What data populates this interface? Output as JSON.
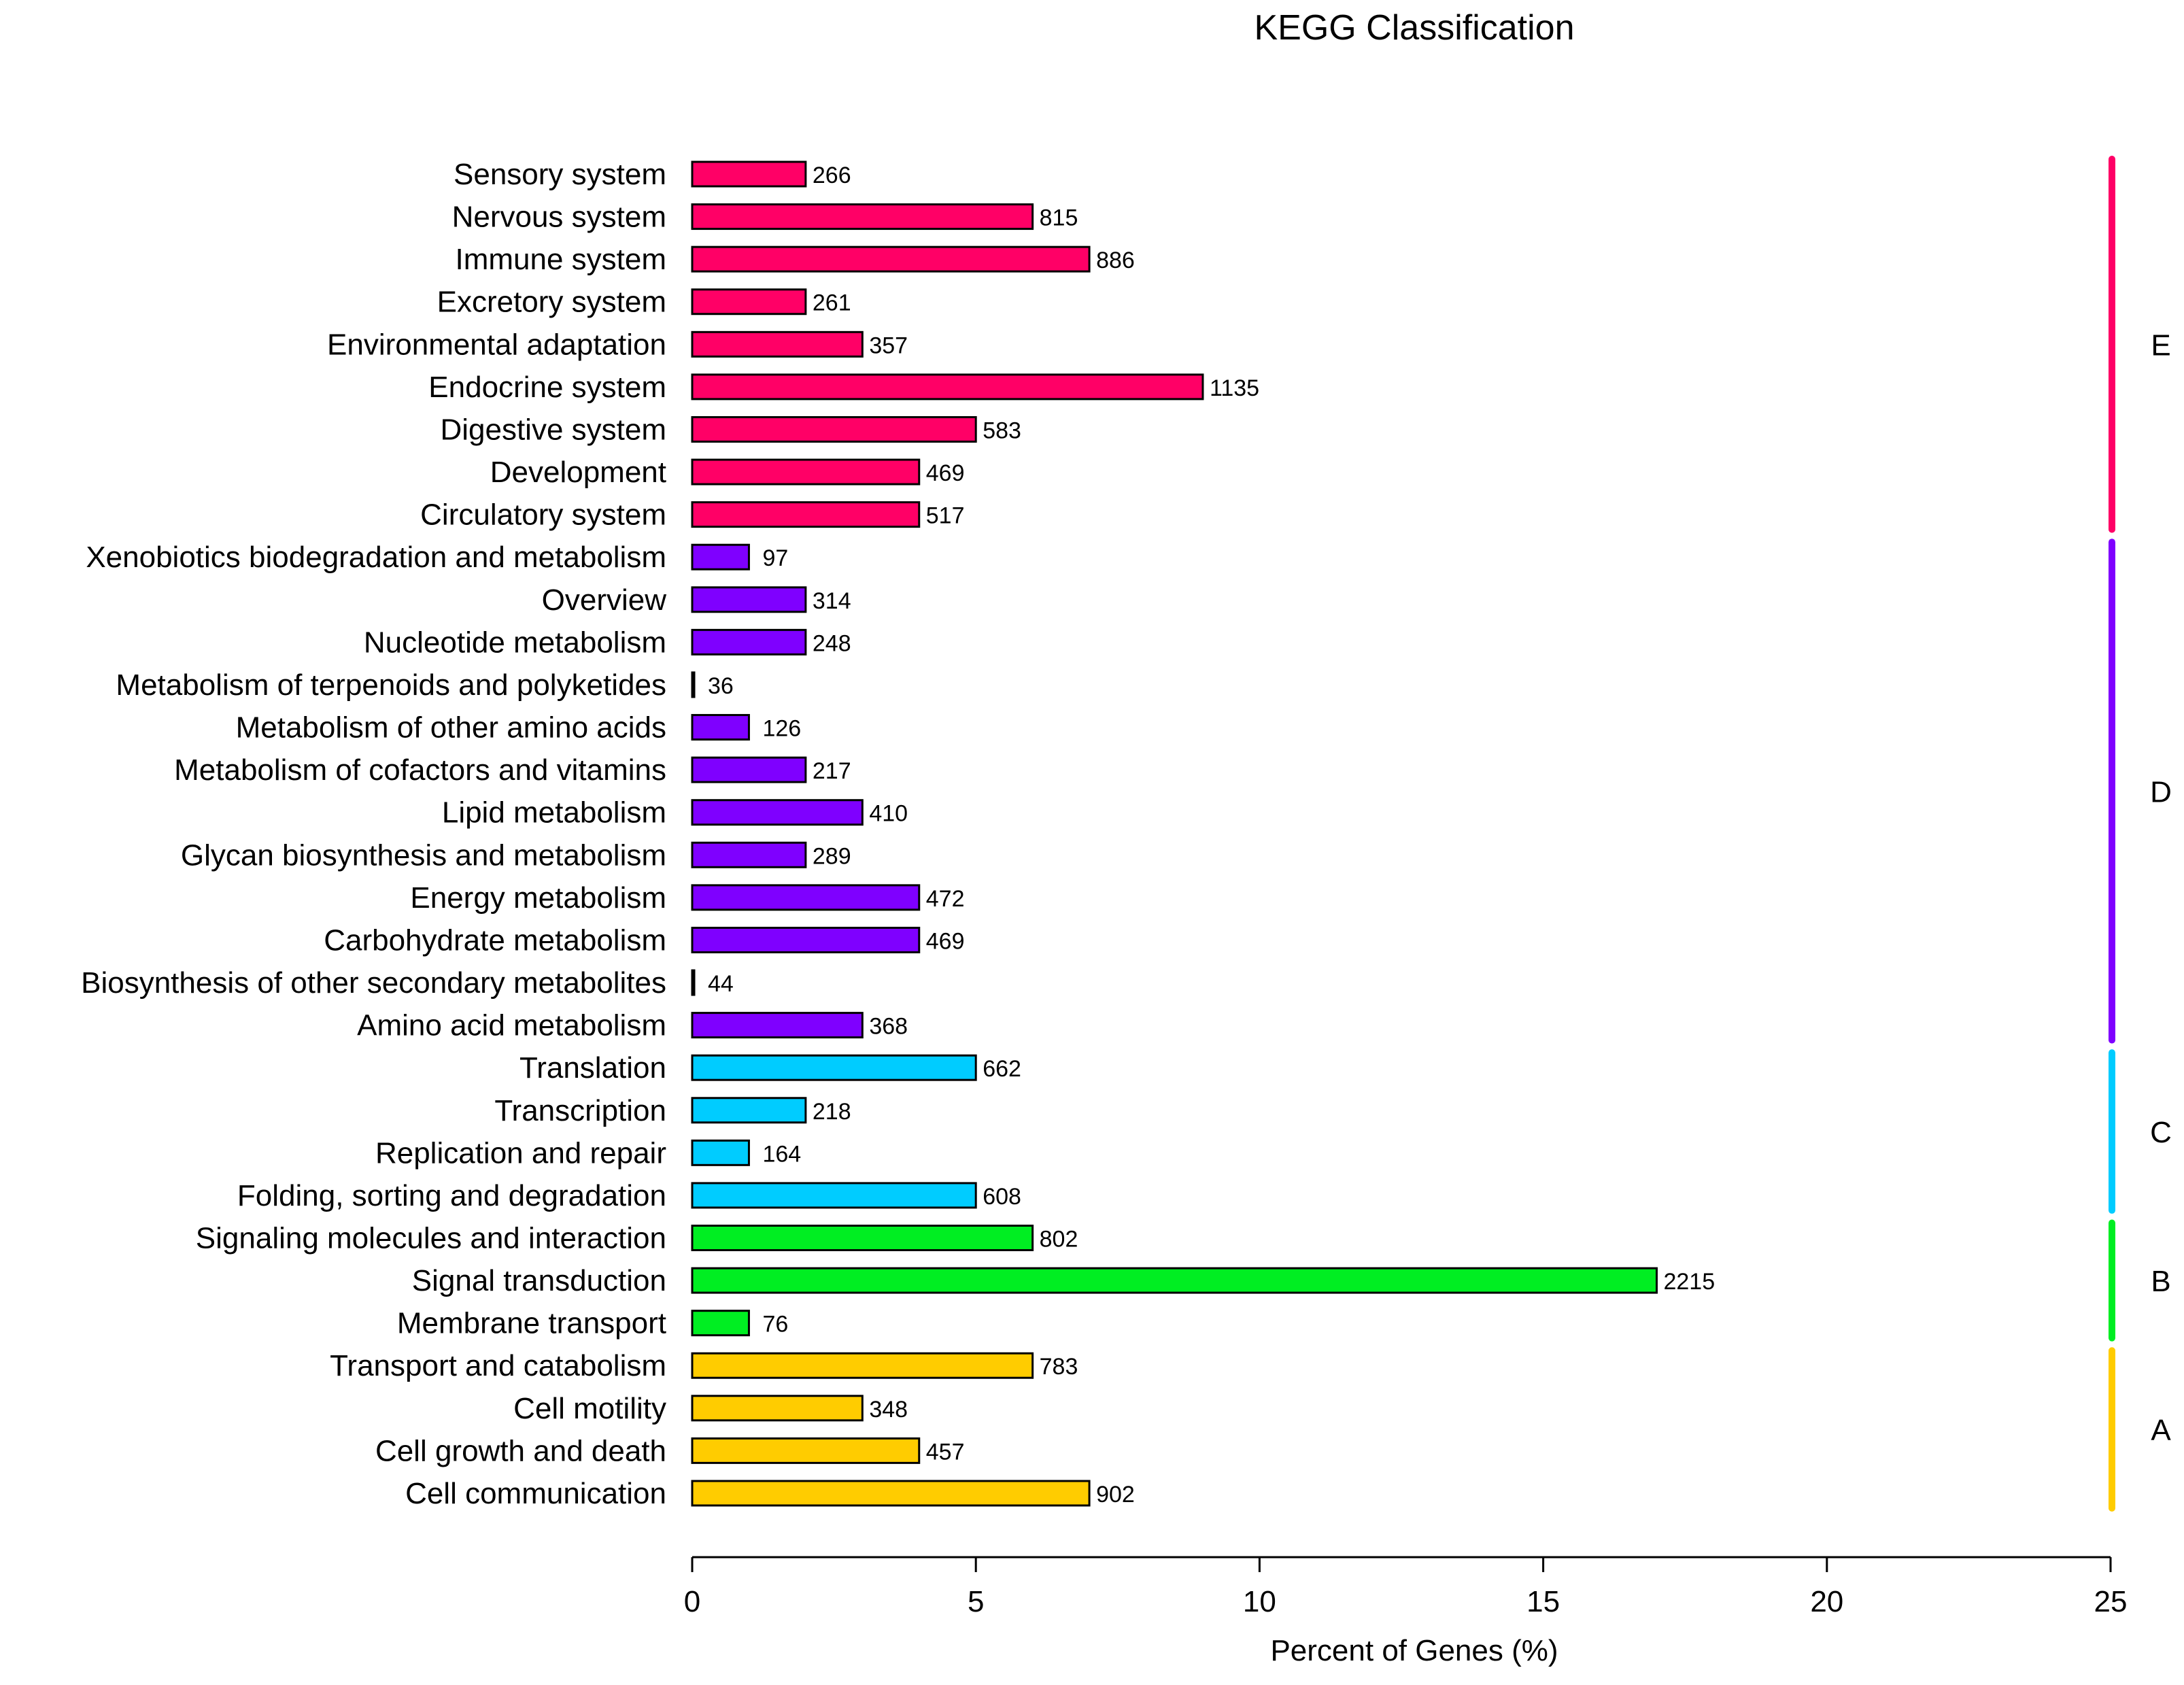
{
  "chart_data": {
    "type": "bar",
    "orientation": "horizontal",
    "title": "KEGG Classification",
    "xlabel": "Percent of Genes (%)",
    "ylabel": "",
    "xlim": [
      0,
      25
    ],
    "xticks": [
      0,
      5,
      10,
      15,
      20,
      25
    ],
    "grid": false,
    "bars": [
      {
        "label": "Sensory system",
        "percent": 2,
        "count": "266",
        "group": "E"
      },
      {
        "label": "Nervous system",
        "percent": 6,
        "count": "815",
        "group": "E"
      },
      {
        "label": "Immune system",
        "percent": 7,
        "count": "886",
        "group": "E"
      },
      {
        "label": "Excretory system",
        "percent": 2,
        "count": "261",
        "group": "E"
      },
      {
        "label": "Environmental adaptation",
        "percent": 3,
        "count": "357",
        "group": "E"
      },
      {
        "label": "Endocrine system",
        "percent": 9,
        "count": "1135",
        "group": "E"
      },
      {
        "label": "Digestive system",
        "percent": 5,
        "count": "583",
        "group": "E"
      },
      {
        "label": "Development",
        "percent": 4,
        "count": "469",
        "group": "E"
      },
      {
        "label": "Circulatory system",
        "percent": 4,
        "count": "517",
        "group": "E"
      },
      {
        "label": "Xenobiotics biodegradation and metabolism",
        "percent": 1,
        "count": "97",
        "group": "D"
      },
      {
        "label": "Overview",
        "percent": 2,
        "count": "314",
        "group": "D"
      },
      {
        "label": "Nucleotide metabolism",
        "percent": 2,
        "count": "248",
        "group": "D"
      },
      {
        "label": "Metabolism of terpenoids and polyketides",
        "percent": 0,
        "count": "36",
        "group": "D"
      },
      {
        "label": "Metabolism of other amino acids",
        "percent": 1,
        "count": "126",
        "group": "D"
      },
      {
        "label": "Metabolism of cofactors and vitamins",
        "percent": 2,
        "count": "217",
        "group": "D"
      },
      {
        "label": "Lipid metabolism",
        "percent": 3,
        "count": "410",
        "group": "D"
      },
      {
        "label": "Glycan biosynthesis and metabolism",
        "percent": 2,
        "count": "289",
        "group": "D"
      },
      {
        "label": "Energy metabolism",
        "percent": 4,
        "count": "472",
        "group": "D"
      },
      {
        "label": "Carbohydrate metabolism",
        "percent": 4,
        "count": "469",
        "group": "D"
      },
      {
        "label": "Biosynthesis of other secondary metabolites",
        "percent": 0,
        "count": "44",
        "group": "D"
      },
      {
        "label": "Amino acid metabolism",
        "percent": 3,
        "count": "368",
        "group": "D"
      },
      {
        "label": "Translation",
        "percent": 5,
        "count": "662",
        "group": "C"
      },
      {
        "label": "Transcription",
        "percent": 2,
        "count": "218",
        "group": "C"
      },
      {
        "label": "Replication and repair",
        "percent": 1,
        "count": "164",
        "group": "C"
      },
      {
        "label": "Folding, sorting and degradation",
        "percent": 5,
        "count": "608",
        "group": "C"
      },
      {
        "label": "Signaling molecules and interaction",
        "percent": 6,
        "count": "802",
        "group": "B"
      },
      {
        "label": "Signal transduction",
        "percent": 17,
        "count": "2215",
        "group": "B"
      },
      {
        "label": "Membrane transport",
        "percent": 1,
        "count": "76",
        "group": "B"
      },
      {
        "label": "Transport and catabolism",
        "percent": 6,
        "count": "783",
        "group": "A"
      },
      {
        "label": "Cell motility",
        "percent": 3,
        "count": "348",
        "group": "A"
      },
      {
        "label": "Cell growth and death",
        "percent": 4,
        "count": "457",
        "group": "A"
      },
      {
        "label": "Cell communication",
        "percent": 7,
        "count": "902",
        "group": "A"
      }
    ],
    "groups": [
      {
        "name": "E",
        "color": "#ff0066"
      },
      {
        "name": "D",
        "color": "#7f00ff"
      },
      {
        "name": "C",
        "color": "#00ccff"
      },
      {
        "name": "B",
        "color": "#00ee22"
      },
      {
        "name": "A",
        "color": "#ffcc00"
      }
    ]
  }
}
